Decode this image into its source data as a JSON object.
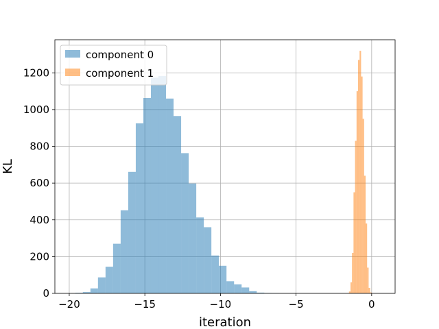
{
  "chart_data": {
    "type": "bar",
    "title": "",
    "xlabel": "iteration",
    "ylabel": "KL",
    "xlim": [
      -20.95,
      1.55
    ],
    "ylim": [
      0,
      1380
    ],
    "xticks": [
      -20,
      -15,
      -10,
      -5,
      0
    ],
    "yticks": [
      0,
      200,
      400,
      600,
      800,
      1000,
      1200
    ],
    "grid": true,
    "legend_position": "top-left",
    "series": [
      {
        "name": "component 0",
        "color": "#1f77b4",
        "alpha": 0.5,
        "bin_edges": [
          -19.6,
          -19.1,
          -18.6,
          -18.1,
          -17.6,
          -17.1,
          -16.6,
          -16.1,
          -15.6,
          -15.1,
          -14.6,
          -14.1,
          -13.6,
          -13.1,
          -12.6,
          -12.1,
          -11.6,
          -11.1,
          -10.6,
          -10.1,
          -9.6,
          -9.1,
          -8.6,
          -8.1,
          -7.6,
          -7.1,
          -6.6,
          -6.1
        ],
        "counts": [
          3,
          7,
          27,
          87,
          145,
          270,
          452,
          661,
          925,
          1063,
          1174,
          1183,
          1060,
          965,
          763,
          598,
          413,
          360,
          206,
          150,
          66,
          49,
          32,
          12,
          4,
          2,
          1
        ]
      },
      {
        "name": "component 1",
        "color": "#ff7f0e",
        "alpha": 0.5,
        "bin_edges": [
          -1.5,
          -1.4,
          -1.3,
          -1.2,
          -1.1,
          -1.0,
          -0.9,
          -0.8,
          -0.7,
          -0.6,
          -0.5,
          -0.4,
          -0.3,
          -0.2,
          -0.1,
          0.0
        ],
        "counts": [
          10,
          60,
          220,
          550,
          830,
          1100,
          1270,
          1320,
          1180,
          950,
          640,
          380,
          140,
          30,
          5
        ]
      }
    ]
  }
}
